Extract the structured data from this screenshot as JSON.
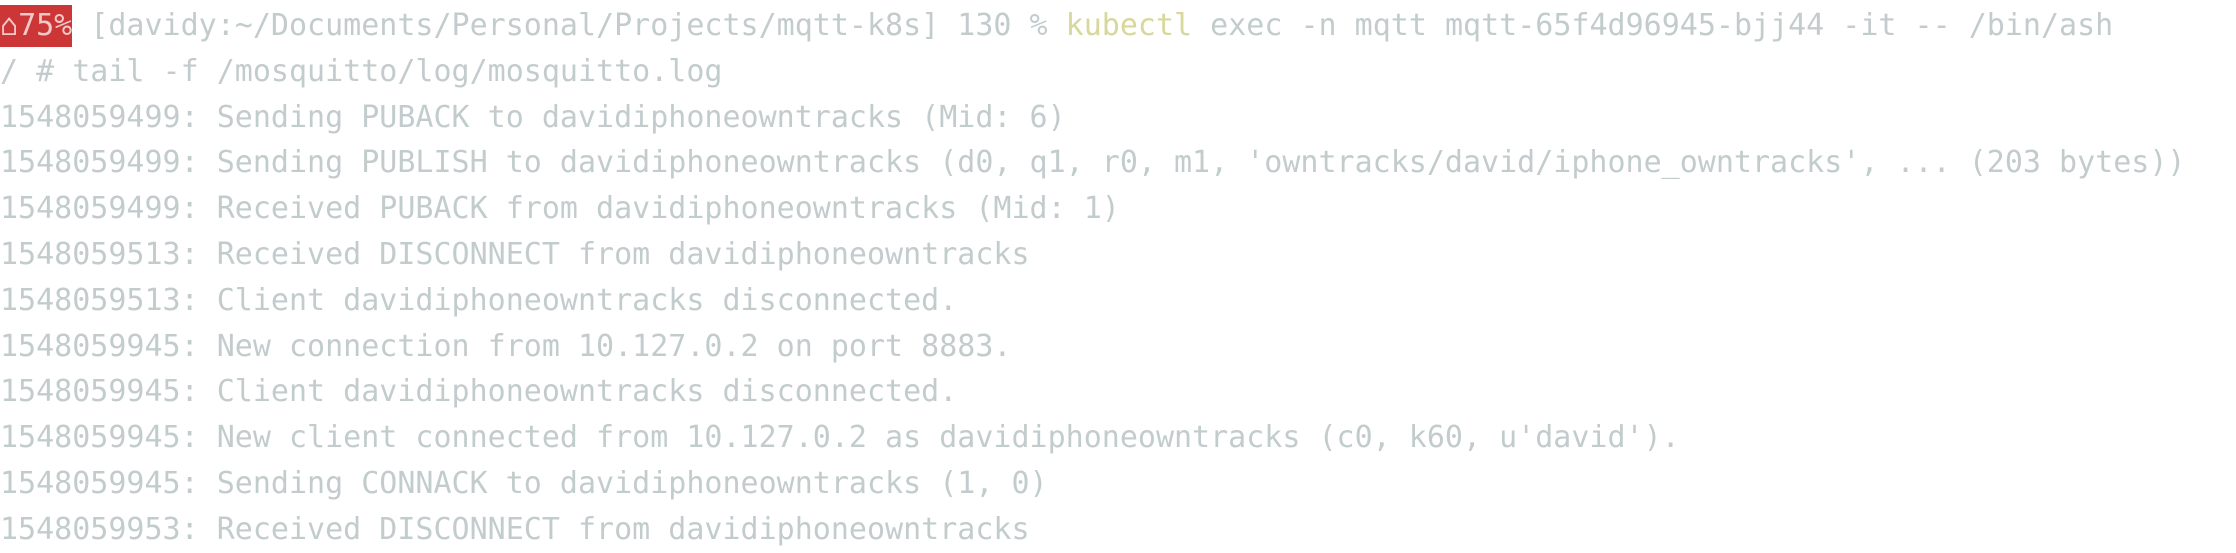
{
  "colors": {
    "background": "#0a2532",
    "text": "#c3cccd",
    "battery_badge": "#cc3636",
    "command": "#d8d79c"
  },
  "prompt": {
    "battery_icon": "battery-warning-icon",
    "battery_glyph": "⌂",
    "battery": "75%",
    "cwd": "[davidy:~/Documents/Personal/Projects/mqtt-k8s]",
    "exit_code": "130",
    "symbol": "%",
    "command": "kubectl",
    "args": "exec -n mqtt mqtt-65f4d96945-bjj44 -it -- /bin/ash"
  },
  "lines": [
    "/ # tail -f /mosquitto/log/mosquitto.log",
    "1548059499: Sending PUBACK to davidiphoneowntracks (Mid: 6)",
    "1548059499: Sending PUBLISH to davidiphoneowntracks (d0, q1, r0, m1, 'owntracks/david/iphone_owntracks', ... (203 bytes))",
    "1548059499: Received PUBACK from davidiphoneowntracks (Mid: 1)",
    "1548059513: Received DISCONNECT from davidiphoneowntracks",
    "1548059513: Client davidiphoneowntracks disconnected.",
    "1548059945: New connection from 10.127.0.2 on port 8883.",
    "1548059945: Client davidiphoneowntracks disconnected.",
    "1548059945: New client connected from 10.127.0.2 as davidiphoneowntracks (c0, k60, u'david').",
    "1548059945: Sending CONNACK to davidiphoneowntracks (1, 0)",
    "1548059953: Received DISCONNECT from davidiphoneowntracks"
  ]
}
